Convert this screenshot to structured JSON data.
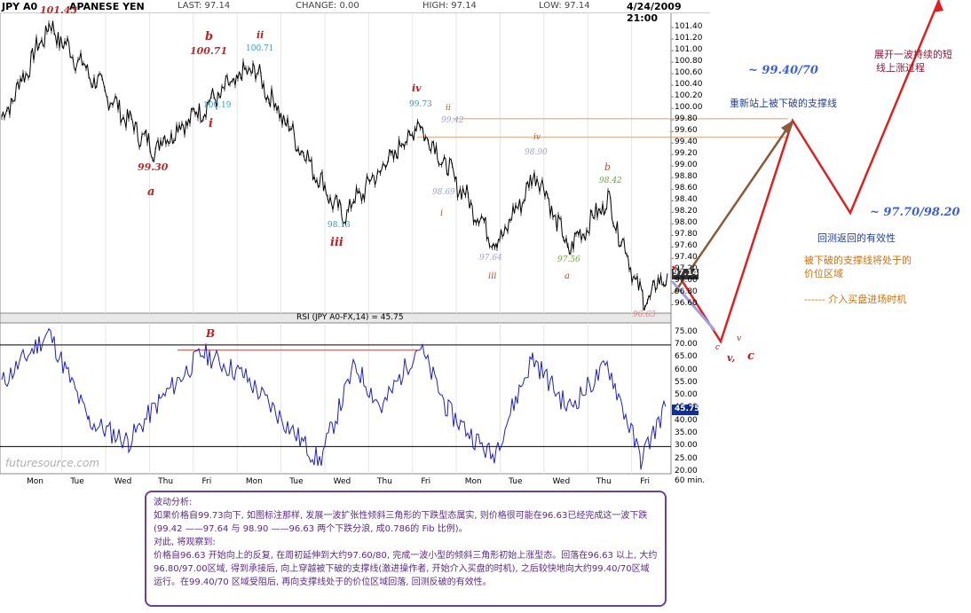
{
  "header": {
    "symbol": "JPY A0",
    "name": "APANESE YEN",
    "last": "LAST: 97.14",
    "change": "CHANGE: 0.00",
    "high": "HIGH: 97.14",
    "low": "LOW: 97.14",
    "datetime": "4/24/2009 21:00"
  },
  "chart_data": [
    {
      "type": "line",
      "title": "JPY A0 JAPANESE YEN",
      "ylim": [
        96.5,
        101.6
      ],
      "yticks": [
        "101.40",
        "101.20",
        "101.00",
        "100.80",
        "100.60",
        "100.40",
        "100.20",
        "100.00",
        "99.80",
        "99.60",
        "99.40",
        "99.20",
        "99.00",
        "98.80",
        "98.60",
        "98.40",
        "98.20",
        "98.00",
        "97.80",
        "97.60",
        "97.40",
        "97.20",
        "97.00",
        "96.80",
        "96.60"
      ],
      "last_price_box": "97.14",
      "x_categories": [
        "Mon",
        "Tue",
        "Wed",
        "Thu",
        "Fri",
        "Mon",
        "Tue",
        "Wed",
        "Thu",
        "Fri",
        "Mon",
        "Tue",
        "Wed",
        "Thu",
        "Fri"
      ],
      "x_unit": "60 min.",
      "key_points": [
        {
          "label": "start",
          "value": 99.8
        },
        {
          "label": "high",
          "value": 101.43
        },
        {
          "label": "i",
          "value": 99.3
        },
        {
          "label": "ii",
          "value": 100.71
        },
        {
          "label": "iii",
          "value": 98.13
        },
        {
          "label": "iv",
          "value": 99.73
        },
        {
          "label": "low",
          "value": 97.64
        },
        {
          "label": "b",
          "value": 98.9
        },
        {
          "label": "a",
          "value": 97.56
        },
        {
          "label": "b",
          "value": 98.42
        },
        {
          "label": "low",
          "value": 96.63
        },
        {
          "label": "last",
          "value": 97.14
        }
      ],
      "annotations": [
        {
          "text": "101.43",
          "color": "#b03030"
        },
        {
          "text": "b",
          "color": "#c02020"
        },
        {
          "text": "100.71",
          "color": "#b03030"
        },
        {
          "text": "ii",
          "color": "#c02020"
        },
        {
          "text": "100.71",
          "color": "#20a0d0"
        },
        {
          "text": "100.19",
          "color": "#20a0d0"
        },
        {
          "text": "i",
          "color": "#c02020"
        },
        {
          "text": "99.30",
          "color": "#b03030"
        },
        {
          "text": "a",
          "color": "#c02020"
        },
        {
          "text": "iv",
          "color": "#c02020"
        },
        {
          "text": "99.73",
          "color": "#20a0d0"
        },
        {
          "text": "ii",
          "color": "#b05030"
        },
        {
          "text": "99.42",
          "color": "#a0a0d0"
        },
        {
          "text": "iv",
          "color": "#b05030"
        },
        {
          "text": "98.90",
          "color": "#a0a0d0"
        },
        {
          "text": "98.69",
          "color": "#a0a0d0"
        },
        {
          "text": "i",
          "color": "#b05030"
        },
        {
          "text": "98.13",
          "color": "#20a0d0"
        },
        {
          "text": "iii",
          "color": "#c02020"
        },
        {
          "text": "97.64",
          "color": "#a0a0d0"
        },
        {
          "text": "iii",
          "color": "#b05030"
        },
        {
          "text": "b",
          "color": "#b05030"
        },
        {
          "text": "98.42",
          "color": "#70a040"
        },
        {
          "text": "97.56",
          "color": "#70a040"
        },
        {
          "text": "a",
          "color": "#b05030"
        },
        {
          "text": "96.63",
          "color": "#e08080"
        }
      ]
    },
    {
      "type": "line",
      "title": "RSI (JPY A0-FX,14) = 45.75",
      "ylim": [
        20,
        78
      ],
      "yticks": [
        "75.00",
        "70.00",
        "65.00",
        "60.00",
        "55.00",
        "50.00",
        "45.00",
        "40.00",
        "35.00",
        "30.00",
        "25.00",
        "20.00"
      ],
      "current_value_box": "45.75",
      "reference_lines": [
        70,
        30
      ],
      "label_B": "B"
    }
  ],
  "projection_labels": {
    "target1": "~  99.40/70",
    "target2": "~ 97.70/98.20",
    "reclaim": "重新站上被下破的支撑线",
    "extend1": "展开一波持续的短",
    "extend2": "线上涨过程",
    "retest": "回测返回的有效性",
    "price_zone1": "被下破的支撑线将处于的",
    "price_zone2": "价位区域",
    "entry": "------ 介入买盘进场时机",
    "wave_c1": "c",
    "wave_v1": "v",
    "wave_v2": "v,",
    "wave_c2": "c"
  },
  "colors": {
    "price_line": "#000000",
    "rsi_line": "#2020c0",
    "projection_red": "#e02020",
    "projection_brown": "#8b5a3a",
    "support_line": "#d4a070",
    "analysis_border": "#6b3fa0"
  },
  "watermark": "futuresource.com",
  "analysis": {
    "title": "波动分析:",
    "p1": "如果价格自99.73向下, 如图标注那样, 发展一波扩张性倾斜三角形的下跌型态属实, 则价格很可能在96.63已经完成这一波下跌(99.42 ——97.64 与 98.90 ——96.63 两个下跌分浪, 成0.786的 Fib 比例)。",
    "p2": "对此, 将观察到:",
    "p3": "价格自96.63 开始向上的反复, 在周初延伸到大约97.60/80, 完成一波小型的倾斜三角形初始上涨型态。回落在96.63 以上, 大约96.80/97.00区域, 得到承接后, 向上穿越被下破的支撑线(激进操作者, 开始介入买盘的时机), 之后较快地向大约99.40/70区域运行。在99.40/70 区域受阻后, 再向支撑线处于的价位区域回落, 回测反破的有效性。"
  }
}
